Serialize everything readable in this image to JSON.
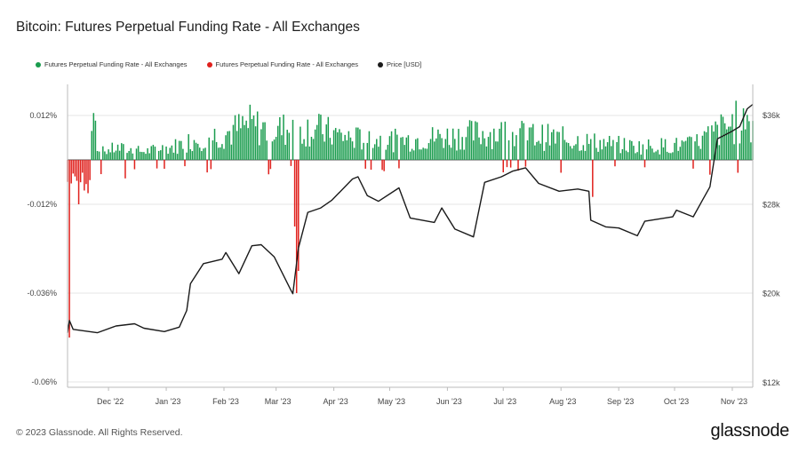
{
  "header": {
    "title": "Bitcoin: Futures Perpetual Funding Rate - All Exchanges"
  },
  "legend": [
    {
      "label": "Futures Perpetual Funding Rate - All Exchanges",
      "color": "#1a9c4e"
    },
    {
      "label": "Futures Perpetual Funding Rate - All Exchanges",
      "color": "#e0201c"
    },
    {
      "label": "Price [USD]",
      "color": "#1a1a1a"
    }
  ],
  "footer": {
    "copyright": "© 2023 Glassnode. All Rights Reserved.",
    "brand": "glassnode"
  },
  "chart_data": {
    "type": "bar+line",
    "left_axis": {
      "ticks": [
        "0.012%",
        "-0.012%",
        "-0.036%",
        "-0.06%"
      ],
      "values": [
        0.012,
        -0.012,
        -0.036,
        -0.06
      ],
      "range": [
        -0.06,
        0.0
      ]
    },
    "right_axis": {
      "ticks": [
        "$36k",
        "$28k",
        "$20k",
        "$12k"
      ],
      "values": [
        36000,
        28000,
        20000,
        12000
      ],
      "range": [
        12000,
        36000
      ]
    },
    "x_ticks": [
      "Dec '22",
      "Jan '23",
      "Feb '23",
      "Mar '23",
      "Apr '23",
      "May '23",
      "Jun '23",
      "Jul '23",
      "Aug '23",
      "Sep '23",
      "Oct '23",
      "Nov '23"
    ],
    "x_range": [
      "2022-11-09",
      "2023-11-12"
    ],
    "funding_rate_positive": [
      [
        "2022-11-25",
        0.0022
      ],
      [
        "2022-12-05",
        0.0035
      ],
      [
        "2022-12-20",
        0.0025
      ],
      [
        "2023-01-05",
        0.004
      ],
      [
        "2023-01-20",
        0.0068
      ],
      [
        "2023-02-01",
        0.0078
      ],
      [
        "2023-02-15",
        0.0105
      ],
      [
        "2023-02-25",
        0.009
      ],
      [
        "2023-03-20",
        0.0095
      ],
      [
        "2023-04-10",
        0.0065
      ],
      [
        "2023-05-05",
        0.0058
      ],
      [
        "2023-06-01",
        0.007
      ],
      [
        "2023-06-25",
        0.0082
      ],
      [
        "2023-07-15",
        0.0074
      ],
      [
        "2023-08-15",
        0.0055
      ],
      [
        "2023-09-10",
        0.004
      ],
      [
        "2023-10-10",
        0.0045
      ],
      [
        "2023-11-05",
        0.0118
      ]
    ],
    "funding_rate_negative": [
      [
        "2022-11-10",
        -0.048
      ],
      [
        "2022-11-15",
        -0.012
      ],
      [
        "2022-11-20",
        -0.009
      ],
      [
        "2022-12-10",
        -0.005
      ],
      [
        "2023-01-25",
        -0.0025
      ],
      [
        "2023-03-11",
        -0.018
      ],
      [
        "2023-03-12",
        -0.036
      ],
      [
        "2023-03-13",
        -0.03
      ],
      [
        "2023-08-18",
        -0.01
      ],
      [
        "2023-09-15",
        -0.002
      ],
      [
        "2023-10-20",
        -0.004
      ]
    ],
    "price_usd": [
      [
        "2022-11-09",
        16500
      ],
      [
        "2022-11-10",
        17600
      ],
      [
        "2022-11-12",
        16800
      ],
      [
        "2022-11-25",
        16500
      ],
      [
        "2022-12-05",
        17100
      ],
      [
        "2022-12-15",
        17300
      ],
      [
        "2022-12-20",
        16900
      ],
      [
        "2022-12-31",
        16600
      ],
      [
        "2023-01-08",
        17000
      ],
      [
        "2023-01-12",
        18500
      ],
      [
        "2023-01-14",
        20900
      ],
      [
        "2023-01-21",
        22700
      ],
      [
        "2023-01-31",
        23100
      ],
      [
        "2023-02-02",
        23700
      ],
      [
        "2023-02-09",
        21800
      ],
      [
        "2023-02-16",
        24300
      ],
      [
        "2023-02-21",
        24400
      ],
      [
        "2023-02-28",
        23300
      ],
      [
        "2023-03-09",
        20300
      ],
      [
        "2023-03-10",
        20000
      ],
      [
        "2023-03-13",
        24100
      ],
      [
        "2023-03-18",
        27300
      ],
      [
        "2023-03-25",
        27700
      ],
      [
        "2023-03-31",
        28400
      ],
      [
        "2023-04-11",
        30300
      ],
      [
        "2023-04-14",
        30500
      ],
      [
        "2023-04-19",
        28800
      ],
      [
        "2023-04-25",
        28300
      ],
      [
        "2023-05-06",
        29500
      ],
      [
        "2023-05-12",
        26800
      ],
      [
        "2023-05-25",
        26400
      ],
      [
        "2023-05-29",
        27700
      ],
      [
        "2023-06-05",
        25800
      ],
      [
        "2023-06-15",
        25100
      ],
      [
        "2023-06-21",
        30000
      ],
      [
        "2023-06-30",
        30500
      ],
      [
        "2023-07-06",
        31000
      ],
      [
        "2023-07-13",
        31300
      ],
      [
        "2023-07-20",
        29900
      ],
      [
        "2023-07-31",
        29200
      ],
      [
        "2023-08-10",
        29400
      ],
      [
        "2023-08-16",
        29200
      ],
      [
        "2023-08-17",
        26600
      ],
      [
        "2023-08-25",
        26000
      ],
      [
        "2023-09-01",
        25900
      ],
      [
        "2023-09-11",
        25200
      ],
      [
        "2023-09-15",
        26500
      ],
      [
        "2023-09-30",
        26900
      ],
      [
        "2023-10-02",
        27500
      ],
      [
        "2023-10-11",
        26900
      ],
      [
        "2023-10-16",
        28400
      ],
      [
        "2023-10-20",
        29600
      ],
      [
        "2023-10-24",
        33900
      ],
      [
        "2023-10-31",
        34500
      ],
      [
        "2023-11-05",
        35000
      ],
      [
        "2023-11-09",
        36600
      ],
      [
        "2023-11-12",
        37000
      ]
    ]
  }
}
